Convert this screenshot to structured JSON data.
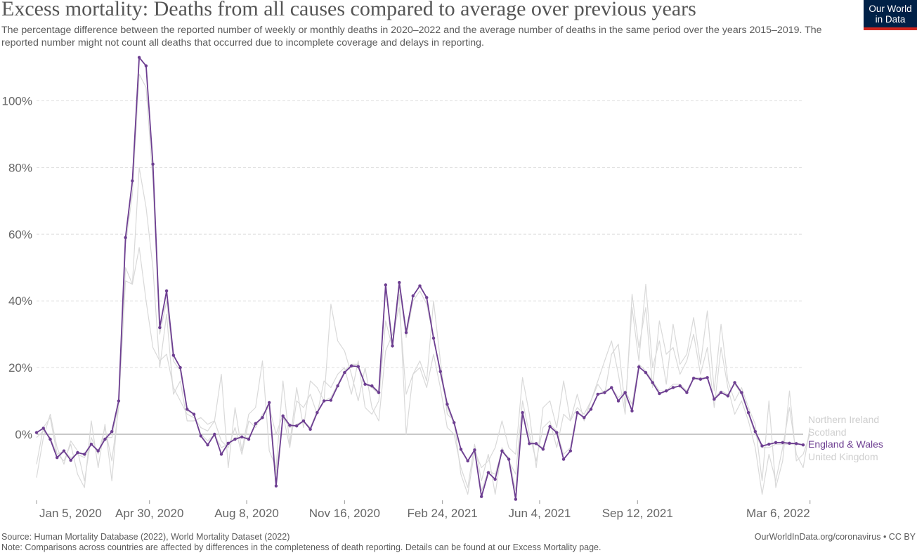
{
  "header": {
    "title": "Excess mortality: Deaths from all causes compared to average over previous years",
    "subtitle": "The percentage difference between the reported number of weekly or monthly deaths in 2020–2022 and the average number of deaths in the same period over the years 2015–2019. The reported number might not count all deaths that occurred due to incomplete coverage and delays in reporting."
  },
  "logo": {
    "line1": "Our World",
    "line2": "in Data",
    "bg": "#002147",
    "accent": "#ce261e"
  },
  "footer": {
    "source": "Source: Human Mortality Database (2022), World Mortality Dataset (2022)",
    "note": "Note: Comparisons across countries are affected by differences in the completeness of death reporting. Details can be found at our Excess Mortality page.",
    "credit": "OurWorldInData.org/coronavirus • CC BY"
  },
  "chart_data": {
    "type": "line",
    "ylabel": "",
    "ylim": [
      -20,
      115
    ],
    "y_ticks": [
      0,
      20,
      40,
      60,
      80,
      100
    ],
    "y_tick_labels": [
      "0%",
      "20%",
      "40%",
      "60%",
      "80%",
      "100%"
    ],
    "x_tick_labels": [
      "Jan 5, 2020",
      "Apr 30, 2020",
      "Aug 8, 2020",
      "Nov 16, 2020",
      "Feb 24, 2021",
      "Jun 4, 2021",
      "Sep 12, 2021",
      "Mar 6, 2022"
    ],
    "x_tick_index": [
      0,
      16.5,
      30.7,
      45,
      59.3,
      73.5,
      87.8,
      113
    ],
    "grid": true,
    "legend_position": "right",
    "highlight_color": "#6d3e91",
    "muted_color": "#d9d9d9",
    "series": [
      {
        "name": "England & Wales",
        "highlight": true,
        "values": [
          0.5,
          1.8,
          -1.5,
          -7,
          -5,
          -7.8,
          -5.5,
          -6,
          -3,
          -5,
          -1.5,
          0.8,
          10,
          59,
          76,
          113,
          110.5,
          81,
          32,
          43,
          23.7,
          20,
          7.5,
          6,
          -0.5,
          -3.2,
          0,
          -6,
          -2.7,
          -1.5,
          -0.8,
          -1.5,
          3.2,
          5,
          9.5,
          -15.5,
          5.5,
          2.7,
          2.5,
          4,
          1.5,
          6.5,
          10,
          10.2,
          14.5,
          18.5,
          20.5,
          20.3,
          15,
          14.5,
          12.5,
          44.8,
          26.5,
          45.5,
          30.5,
          41.5,
          44.5,
          41,
          28.8,
          18.8,
          9,
          3.5,
          -4.5,
          -8,
          -4.7,
          -18.7,
          -11.5,
          -13.5,
          -5,
          -7.5,
          -19.5,
          6.5,
          -2.8,
          -2.8,
          -4.5,
          2.3,
          0.5,
          -7.5,
          -5,
          6.5,
          5,
          7.5,
          12,
          12.5,
          14,
          10,
          12.5,
          7,
          20.2,
          18.5,
          15.5,
          12.2,
          13,
          14,
          14.5,
          12.5,
          16.8,
          16.5,
          17,
          10.5,
          12.5,
          11.5,
          15.5,
          12.5,
          6.5,
          0.8,
          -3.5,
          -3,
          -2.5,
          -2.5,
          -2.7,
          -2.8,
          -3.2
        ]
      },
      {
        "name": "Northern Ireland",
        "highlight": false,
        "values": [
          -9,
          2,
          5,
          -6,
          -8,
          -3,
          -12,
          -16,
          4,
          -10,
          3,
          -14,
          10,
          50,
          45,
          80,
          68,
          50,
          20,
          36,
          12,
          16,
          4,
          4,
          5,
          3,
          4,
          18,
          -10,
          8,
          -5,
          6,
          8,
          22,
          -5,
          -10,
          16,
          -3,
          14,
          2,
          16,
          14,
          10,
          39,
          28,
          25,
          18,
          10,
          20,
          8,
          4,
          25,
          30,
          38,
          12,
          18,
          22,
          16,
          40,
          22,
          6,
          4,
          -12,
          -18,
          -5,
          -10,
          -8,
          -4,
          4,
          -4,
          -6,
          17,
          6,
          -10,
          8,
          10,
          2,
          16,
          4,
          12,
          4,
          10,
          15,
          12,
          24,
          27,
          8,
          38,
          22,
          45,
          20,
          28,
          15,
          33,
          21,
          24,
          35,
          21,
          37,
          13,
          33,
          16,
          10,
          14,
          8,
          3,
          -14,
          10,
          -16,
          -8,
          13,
          -8,
          -6,
          0
        ]
      },
      {
        "name": "Scotland",
        "highlight": false,
        "values": [
          -13,
          -1,
          6,
          -4,
          -9,
          -2,
          -5,
          -14,
          -1,
          -6,
          2,
          -8,
          8,
          46,
          45,
          56,
          40,
          26,
          22,
          24,
          14,
          10,
          6,
          5,
          2,
          1,
          4,
          -2,
          -4,
          2,
          -6,
          4,
          2,
          6,
          8,
          0,
          6,
          -4,
          10,
          8,
          12,
          6,
          16,
          14,
          18,
          20,
          12,
          22,
          8,
          6,
          10,
          34,
          26,
          42,
          0,
          18,
          20,
          14,
          24,
          14,
          2,
          0,
          -10,
          -16,
          -3,
          -14,
          -6,
          -18,
          -4,
          -8,
          -12,
          10,
          0,
          -8,
          2,
          4,
          -4,
          6,
          4,
          8,
          6,
          10,
          16,
          22,
          28,
          18,
          6,
          42,
          26,
          38,
          14,
          34,
          24,
          26,
          18,
          22,
          30,
          18,
          26,
          8,
          26,
          14,
          6,
          10,
          4,
          -4,
          -18,
          -6,
          -14,
          -4,
          8,
          -6,
          -10,
          2
        ]
      },
      {
        "name": "United Kingdom",
        "highlight": false,
        "values": [
          -1,
          1,
          -1,
          -6,
          -5,
          -7,
          -6,
          -7,
          -3,
          -5,
          -1,
          -1,
          9,
          57,
          72,
          108,
          104,
          76,
          30,
          40,
          22,
          19,
          7,
          6,
          0,
          -2,
          0,
          -4,
          -3,
          -1,
          -1,
          -1,
          3,
          5,
          9,
          -12,
          5,
          2,
          3,
          4,
          2,
          7,
          10,
          11,
          15,
          19,
          21,
          21,
          15,
          14,
          12,
          44,
          27,
          44,
          29,
          40,
          43,
          39,
          29,
          18,
          8,
          3,
          -5,
          -8,
          -5,
          -17,
          -11,
          -12,
          -5,
          -7,
          -17,
          7,
          -2,
          -3,
          -4,
          3,
          1,
          -6,
          -4,
          7,
          5,
          8,
          12,
          13,
          14,
          11,
          13,
          9,
          21,
          19,
          16,
          13,
          13,
          15,
          15,
          13,
          17,
          17,
          17,
          11,
          13,
          12,
          15,
          12,
          6,
          0,
          -4,
          -4,
          -3,
          -3,
          -3,
          -3,
          -3
        ]
      }
    ]
  }
}
